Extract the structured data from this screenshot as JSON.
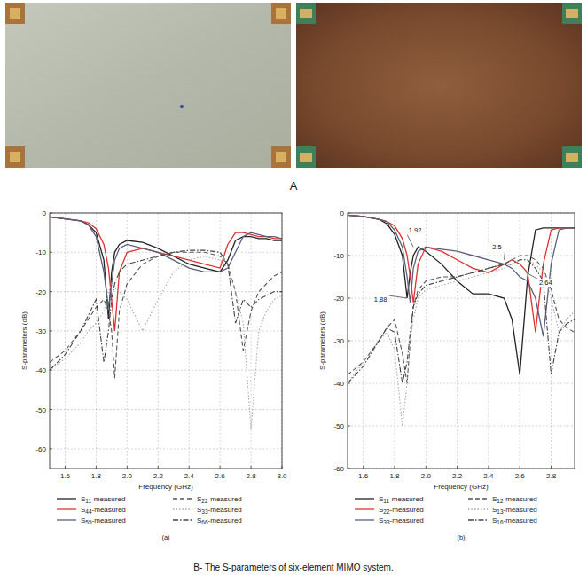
{
  "figure": {
    "photo_label": "A",
    "caption": "B- The S-parameters of six-element MIMO system."
  },
  "chart_data": [
    {
      "type": "line",
      "panel": "(a)",
      "x_label": "Frequency (GHz)",
      "y_label": "S-parameters (dB)",
      "xlim": [
        1.5,
        3.0
      ],
      "ylim": [
        -65,
        0
      ],
      "xticks": [
        1.6,
        1.8,
        {
          "value": 2,
          "label": "2.0"
        },
        2.2,
        2.4,
        2.6,
        2.8,
        {
          "value": 3,
          "label": "3.0"
        }
      ],
      "yticks": [
        0,
        -10,
        -20,
        -30,
        -40,
        -50,
        -60
      ],
      "grid": true,
      "legend": "bottom",
      "x": [
        1.5,
        1.6,
        1.7,
        1.75,
        1.8,
        1.85,
        1.88,
        1.9,
        1.92,
        1.95,
        2.0,
        2.1,
        2.2,
        2.3,
        2.4,
        2.5,
        2.6,
        2.65,
        2.7,
        2.75,
        2.8,
        2.85,
        2.9,
        2.95,
        3.0
      ],
      "series": [
        {
          "name": "S11-measured",
          "color": "#222222",
          "line_style": "solid",
          "values": [
            -1,
            -1.5,
            -2,
            -3,
            -5,
            -12,
            -27,
            -15,
            -10,
            -8,
            -7,
            -7.5,
            -9,
            -11,
            -13,
            -14,
            -15,
            -12,
            -7,
            -6,
            -6,
            -6.5,
            -6.5,
            -7,
            -7
          ]
        },
        {
          "name": "S44-measured",
          "color": "#e03030",
          "line_style": "solid",
          "values": [
            -1,
            -1.5,
            -2,
            -2.5,
            -4,
            -8,
            -14,
            -22,
            -30,
            -15,
            -10,
            -9,
            -10,
            -11,
            -12,
            -13,
            -14,
            -8,
            -5,
            -5,
            -5.5,
            -6,
            -6,
            -6.5,
            -6.5
          ]
        },
        {
          "name": "S55-measured",
          "color": "#5a5f7a",
          "line_style": "solid",
          "values": [
            -1,
            -1.5,
            -2,
            -3,
            -6,
            -15,
            -24,
            -18,
            -12,
            -9,
            -8,
            -9,
            -10,
            -12,
            -14,
            -15,
            -15,
            -14,
            -10,
            -6,
            -5,
            -5.5,
            -6,
            -6,
            -6.5
          ]
        },
        {
          "name": "S22-measured",
          "color": "#555555",
          "line_style": "dashed",
          "values": [
            -38,
            -35,
            -30,
            -27,
            -24,
            -22,
            -25,
            -30,
            -42,
            -25,
            -18,
            -13,
            -11,
            -10,
            -10,
            -10,
            -11,
            -13,
            -20,
            -35,
            -25,
            -20,
            -18,
            -16,
            -15
          ]
        },
        {
          "name": "S33-measured",
          "color": "#a8a8a8",
          "line_style": "dotted",
          "values": [
            -40,
            -37,
            -33,
            -30,
            -28,
            -25,
            -20,
            -18,
            -19,
            -20,
            -22,
            -30,
            -22,
            -15,
            -12,
            -11,
            -12,
            -14,
            -20,
            -28,
            -55,
            -30,
            -25,
            -22,
            -21
          ]
        },
        {
          "name": "S66-measured",
          "color": "#444444",
          "line_style": "dashdot",
          "values": [
            -40,
            -36,
            -30,
            -26,
            -22,
            -38,
            -30,
            -22,
            -18,
            -15,
            -13,
            -12,
            -11,
            -10,
            -9.5,
            -9.5,
            -10,
            -13,
            -28,
            -22,
            -24,
            -22,
            -21,
            -20,
            -20
          ]
        }
      ]
    },
    {
      "type": "line",
      "panel": "(b)",
      "x_label": "Frequency (GHz)",
      "y_label": "S-parameters (dB)",
      "xlim": [
        1.5,
        2.95
      ],
      "ylim": [
        -60,
        0
      ],
      "xticks": [
        1.6,
        1.8,
        {
          "value": 2,
          "label": "2.0"
        },
        2.2,
        2.4,
        2.6,
        2.8
      ],
      "yticks": [
        0,
        -10,
        -20,
        -30,
        -40,
        -50,
        -60
      ],
      "grid": true,
      "legend": "bottom",
      "x": [
        1.5,
        1.6,
        1.7,
        1.75,
        1.8,
        1.85,
        1.88,
        1.9,
        1.92,
        1.95,
        2.0,
        2.1,
        2.2,
        2.3,
        2.4,
        2.5,
        2.55,
        2.6,
        2.65,
        2.7,
        2.75,
        2.8,
        2.85,
        2.9,
        2.95
      ],
      "annotations": [
        {
          "x": 1.88,
          "y": -20,
          "label": "1.88"
        },
        {
          "x": 1.92,
          "y": -8,
          "label": "1.92"
        },
        {
          "x": 2.5,
          "y": -11,
          "label": "2.5"
        },
        {
          "x": 2.64,
          "y": -14,
          "label": "2.64"
        }
      ],
      "series": [
        {
          "name": "S11-measured",
          "color": "#222222",
          "line_style": "solid",
          "values": [
            -0.5,
            -0.8,
            -1.5,
            -2.5,
            -5,
            -10,
            -20,
            -14,
            -10,
            -8,
            -9,
            -12,
            -16,
            -19,
            -19,
            -20,
            -25,
            -38,
            -15,
            -4,
            -3.5,
            -3.5,
            -3.5,
            -3.5,
            -3.5
          ]
        },
        {
          "name": "S22-measured",
          "color": "#e03030",
          "line_style": "solid",
          "values": [
            -0.5,
            -0.8,
            -1.5,
            -2,
            -3,
            -6,
            -10,
            -15,
            -21,
            -12,
            -8,
            -9,
            -11,
            -13,
            -14,
            -12,
            -11,
            -12,
            -14,
            -28,
            -12,
            -4,
            -3.5,
            -3.5,
            -3.5
          ]
        },
        {
          "name": "S33-measured",
          "color": "#5a5f7a",
          "line_style": "solid",
          "values": [
            -0.5,
            -0.8,
            -1.5,
            -2,
            -4,
            -8,
            -15,
            -21,
            -13,
            -9,
            -8,
            -8.5,
            -9,
            -10,
            -11,
            -12,
            -13,
            -15,
            -16,
            -20,
            -29,
            -12,
            -4,
            -3.5,
            -3.5
          ]
        },
        {
          "name": "S12-measured",
          "color": "#555555",
          "line_style": "dashed",
          "values": [
            -38,
            -35,
            -30,
            -27,
            -25,
            -33,
            -40,
            -30,
            -22,
            -18,
            -16,
            -15,
            -15,
            -14,
            -13,
            -12,
            -11,
            -10,
            -10,
            -11,
            -13,
            -18,
            -25,
            -27,
            -28
          ]
        },
        {
          "name": "S13-measured",
          "color": "#a8a8a8",
          "line_style": "dotted",
          "values": [
            -40,
            -35,
            -30,
            -28,
            -32,
            -50,
            -40,
            -30,
            -25,
            -20,
            -18,
            -17,
            -16,
            -15,
            -14,
            -13,
            -12,
            -11,
            -11,
            -12,
            -14,
            -20,
            -28,
            -25,
            -23
          ]
        },
        {
          "name": "S16-measured",
          "color": "#444444",
          "line_style": "dashdot",
          "values": [
            -40,
            -36,
            -30,
            -27,
            -28,
            -40,
            -35,
            -28,
            -22,
            -19,
            -17,
            -16,
            -15,
            -14,
            -13,
            -12,
            -12,
            -11,
            -11,
            -13,
            -16,
            -38,
            -28,
            -26,
            -25
          ]
        }
      ]
    }
  ]
}
